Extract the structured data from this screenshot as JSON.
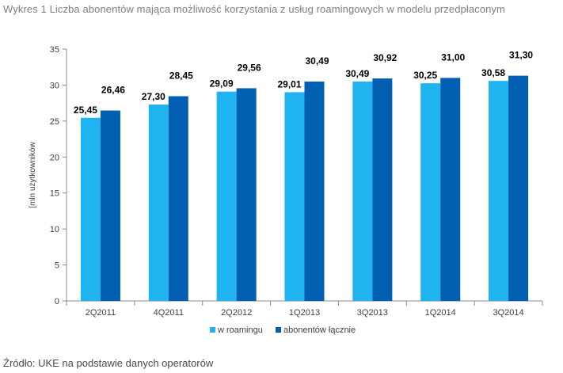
{
  "caption": "Wykres 1 Liczba abonentów mająca możliwość korzystania z usług roamingowych w modelu przedpłaconym",
  "source": "Źródło: UKE na podstawie danych operatorów",
  "chart_data": {
    "type": "bar",
    "title": "",
    "xlabel": "",
    "ylabel": "[mln użytkowników",
    "ylim": [
      0,
      35
    ],
    "yticks": [
      0,
      5,
      10,
      15,
      20,
      25,
      30,
      35
    ],
    "grid": false,
    "legend_position": "bottom",
    "categories": [
      "2Q2011",
      "4Q2011",
      "2Q2012",
      "1Q2013",
      "3Q2013",
      "1Q2014",
      "3Q2014"
    ],
    "series": [
      {
        "name": "w roamingu",
        "color": "#1fb3ef",
        "values": [
          25.45,
          27.3,
          29.09,
          29.01,
          30.49,
          30.25,
          30.58
        ],
        "labels": [
          "25,45",
          "27,30",
          "29,09",
          "29,01",
          "30,49",
          "30,25",
          "30,58"
        ]
      },
      {
        "name": "abonentów łącznie",
        "color": "#005fb0",
        "values": [
          26.46,
          28.45,
          29.56,
          30.49,
          30.92,
          31.0,
          31.3
        ],
        "labels": [
          "26,46",
          "28,45",
          "29,56",
          "30,49",
          "30,92",
          "31,00",
          "31,30"
        ]
      }
    ]
  }
}
